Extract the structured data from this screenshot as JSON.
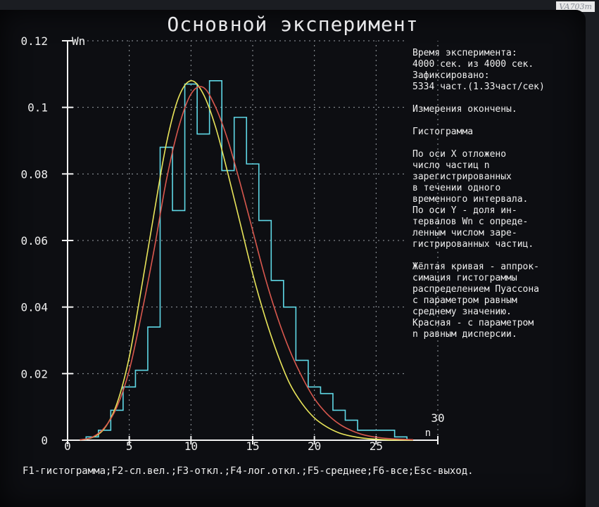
{
  "watermark": "VA703m",
  "window": {
    "title": "Основной эксперимент"
  },
  "info_panel": {
    "lines": [
      "Время эксперимента:",
      "4000 сек. из 4000 сек.",
      "Зафиксировано:",
      "5334 част.(1.33част/сек)",
      "",
      "Измерения окончены.",
      "",
      "Гистограмма",
      "",
      "По оси X отложено",
      "число частиц n",
      "зарегистрированных",
      "в течении одного",
      "временного интервала.",
      "По оси Y - доля ин-",
      "тервалов Wn с опреде-",
      "ленным числом заре-",
      "гистрированных частиц.",
      "",
      "Жёлтая кривая - аппрок-",
      "симация гистограммы",
      "распределением Пуассона",
      "с параметром равным",
      "среднему значению.",
      "Красная - с параметром",
      "n равным дисперсии."
    ]
  },
  "status_bar": {
    "text": "F1-гистограмма;F2-сл.вел.;F3-откл.;F4-лог.откл.;F5-среднее;F6-все;Esc-выход."
  },
  "colors": {
    "histogram": "#5fd8e6",
    "yellow_curve": "#e9e55a",
    "red_curve": "#d9584e",
    "axes": "#f2f2f2",
    "grid": "#9aa0a6",
    "text": "#eeeeee"
  },
  "chart_data": {
    "type": "line",
    "ylabel": "Wn",
    "xlabel": "n",
    "xlim": [
      0,
      30
    ],
    "ylim": [
      0,
      0.12
    ],
    "x_ticks": [
      0,
      5,
      10,
      15,
      20,
      25,
      30
    ],
    "x_tick_labels": [
      "0",
      "5",
      "10",
      "15",
      "20",
      "25",
      "30"
    ],
    "y_ticks": [
      0,
      0.02,
      0.04,
      0.06,
      0.08,
      0.1,
      0.12
    ],
    "y_tick_labels": [
      "0",
      "0.02",
      "0.04",
      "0.06",
      "0.08",
      "0.1",
      "0.12"
    ],
    "grid": true,
    "histogram": {
      "name": "Гистограмма",
      "n": [
        2,
        3,
        4,
        5,
        6,
        7,
        8,
        9,
        10,
        11,
        12,
        13,
        14,
        15,
        16,
        17,
        18,
        19,
        20,
        21,
        22,
        23,
        24,
        25,
        26,
        27
      ],
      "values": [
        0.001,
        0.003,
        0.009,
        0.016,
        0.021,
        0.034,
        0.088,
        0.069,
        0.107,
        0.092,
        0.108,
        0.081,
        0.097,
        0.083,
        0.066,
        0.048,
        0.04,
        0.024,
        0.016,
        0.014,
        0.009,
        0.006,
        0.003,
        0.003,
        0.003,
        0.001
      ]
    },
    "series": [
      {
        "name": "Жёлтая кривая",
        "color": "#e9e55a",
        "x": [
          1,
          2,
          3,
          4,
          5,
          6,
          7,
          8,
          9,
          10,
          11,
          12,
          13,
          14,
          15,
          16,
          17,
          18,
          19,
          20,
          21,
          22,
          23,
          24,
          25,
          26,
          27,
          28
        ],
        "values": [
          0.0001,
          0.0008,
          0.0036,
          0.011,
          0.025,
          0.046,
          0.068,
          0.089,
          0.103,
          0.108,
          0.104,
          0.094,
          0.08,
          0.065,
          0.05,
          0.037,
          0.026,
          0.017,
          0.011,
          0.0067,
          0.004,
          0.0022,
          0.0012,
          0.0006,
          0.0003,
          0.0001,
          6e-05,
          3e-05
        ]
      },
      {
        "name": "Красная",
        "color": "#d9584e",
        "x": [
          1,
          2,
          3,
          4,
          5,
          6,
          7,
          8,
          9,
          10,
          11,
          12,
          13,
          14,
          15,
          16,
          17,
          18,
          19,
          20,
          21,
          22,
          23,
          24,
          25,
          26,
          27,
          28
        ],
        "values": [
          0.0001,
          0.0009,
          0.0038,
          0.01,
          0.021,
          0.038,
          0.057,
          0.078,
          0.094,
          0.104,
          0.106,
          0.1,
          0.09,
          0.077,
          0.063,
          0.049,
          0.037,
          0.027,
          0.019,
          0.0125,
          0.008,
          0.0049,
          0.0029,
          0.0016,
          0.0009,
          0.0005,
          0.0003,
          0.00015
        ]
      }
    ]
  }
}
